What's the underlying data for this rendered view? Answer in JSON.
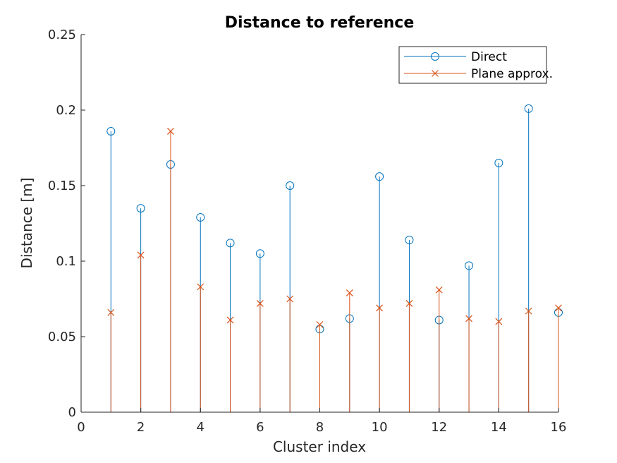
{
  "chart_data": {
    "type": "stem",
    "title": "Distance to reference",
    "xlabel": "Cluster index",
    "ylabel": "Distance [m]",
    "xlim": [
      0,
      16
    ],
    "ylim": [
      0,
      0.25
    ],
    "xticks": [
      "0",
      "2",
      "4",
      "6",
      "8",
      "10",
      "12",
      "14",
      "16"
    ],
    "yticks": [
      "0",
      "0.05",
      "0.1",
      "0.15",
      "0.2",
      "0.25"
    ],
    "grid": false,
    "legend_position": "top-right",
    "x": [
      1,
      2,
      3,
      4,
      5,
      6,
      7,
      8,
      9,
      10,
      11,
      12,
      13,
      14,
      15,
      16
    ],
    "series": [
      {
        "name": "Direct",
        "marker": "circle",
        "color": "#0072BD",
        "values": [
          0.186,
          0.135,
          0.164,
          0.129,
          0.112,
          0.105,
          0.15,
          0.055,
          0.062,
          0.156,
          0.114,
          0.061,
          0.097,
          0.165,
          0.201,
          0.066
        ]
      },
      {
        "name": "Plane approx.",
        "marker": "x",
        "color": "#D95319",
        "values": [
          0.066,
          0.104,
          0.186,
          0.083,
          0.061,
          0.072,
          0.075,
          0.058,
          0.079,
          0.069,
          0.072,
          0.081,
          0.062,
          0.06,
          0.067,
          0.069
        ]
      }
    ]
  }
}
